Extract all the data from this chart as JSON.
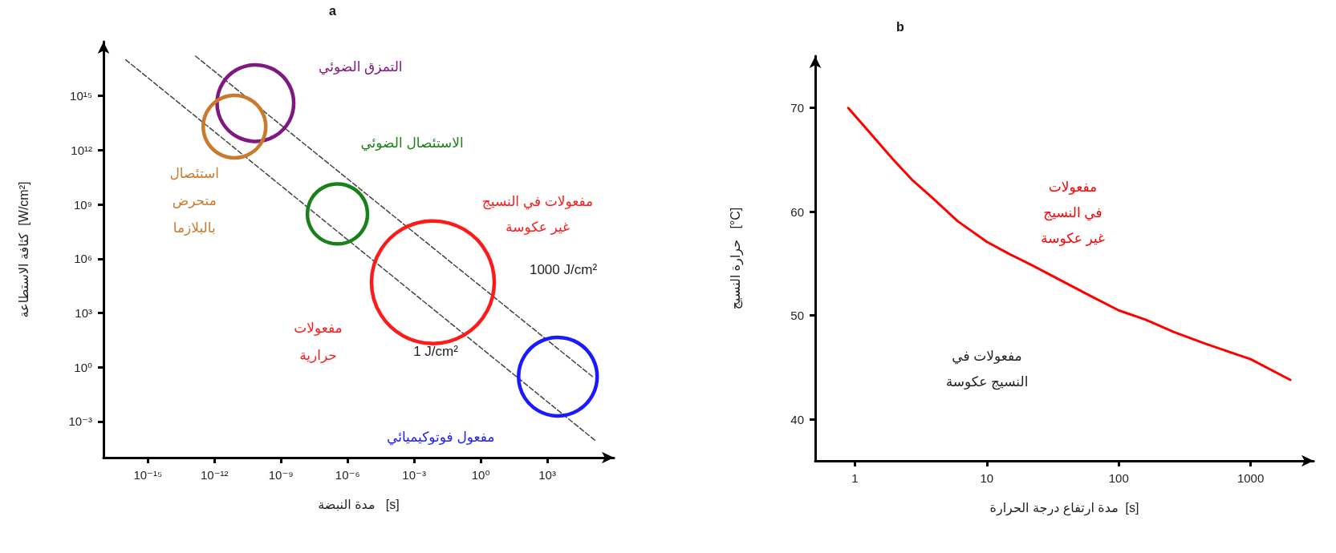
{
  "chart_data": [
    {
      "type": "bubble",
      "title": "a",
      "xlabel": "مدة النبضة   [s]",
      "ylabel": "كثافة الاستطاعة  [W/cm²]",
      "log": "xy",
      "marker": "circle",
      "line_style": "dashed",
      "xlim": [
        1e-17,
        1000000.0
      ],
      "ylim": [
        1e-05,
        1e+18
      ],
      "xticks": [
        {
          "value": 1e-15,
          "label": "10⁻¹⁵"
        },
        {
          "value": 1e-12,
          "label": "10⁻¹²"
        },
        {
          "value": 1e-09,
          "label": "10⁻⁹"
        },
        {
          "value": 1e-06,
          "label": "10⁻⁶"
        },
        {
          "value": 0.001,
          "label": "10⁻³"
        },
        {
          "value": 1,
          "label": "10⁰"
        },
        {
          "value": 1000,
          "label": "10³"
        }
      ],
      "yticks": [
        {
          "value": 0.001,
          "label": "10⁻³"
        },
        {
          "value": 1,
          "label": "10⁰"
        },
        {
          "value": 1000,
          "label": "10³"
        },
        {
          "value": 1000000.0,
          "label": "10⁶"
        },
        {
          "value": 1000000000.0,
          "label": "10⁹"
        },
        {
          "value": 1000000000000.0,
          "label": "10¹²"
        },
        {
          "value": 1000000000000000.0,
          "label": "10¹⁵"
        }
      ],
      "series": [
        {
          "name": "التمزق الضوئي",
          "color": "#80197f",
          "x": [
            7e-11
          ],
          "values": [
            400000000000000.0
          ],
          "sizes": [
            0.39
          ]
        },
        {
          "name": "استئصال\nمتحرض\nبالبلازما",
          "color": "#c97a2c",
          "x": [
            8e-12
          ],
          "values": [
            20000000000000.0
          ],
          "sizes": [
            0.26
          ]
        },
        {
          "name": "الاستئصال الضوئي",
          "color": "#1a801a",
          "x": [
            3.5e-07
          ],
          "values": [
            300000000.0
          ],
          "sizes": [
            0.24
          ]
        },
        {
          "name": "مفعولات\nحرارية",
          "color": "#ff1a1a",
          "x": [
            0.007
          ],
          "values": [
            50000.0
          ],
          "sizes": [
            1
          ]
        },
        {
          "name": "مفعول فوتوكيميائي",
          "color": "#1a1aff",
          "x": [
            3000
          ],
          "values": [
            0.3
          ],
          "sizes": [
            0.41
          ]
        },
        {
          "type": "line",
          "marker": "none",
          "color": "#444444",
          "x": [
            1e-16,
            160000.0
          ],
          "values": [
            1e+17,
            8e-05
          ]
        },
        {
          "type": "line",
          "marker": "none",
          "color": "#444444",
          "x": [
            1.4e-13,
            110000.0
          ],
          "values": [
            1.6e+17,
            0.3
          ]
        }
      ],
      "annotations": [
        "1000 J/cm²",
        "1 J/cm²",
        "مفعولات في النسيج\nغير عكوسة"
      ]
    },
    {
      "type": "line",
      "title": "b",
      "xlabel": "مدة ارتفاع درجة الحرارة  [s]",
      "ylabel": "حرارة النسيج   [°C]",
      "log": "x",
      "marker": "none",
      "line_style": "solid",
      "xlim": [
        0.5,
        3000
      ],
      "ylim": [
        36,
        75
      ],
      "xticks": [
        1,
        10,
        100,
        1000
      ],
      "yticks": [
        40,
        50,
        60,
        70
      ],
      "color": "#ff0000",
      "x": [
        0.89,
        1.3,
        1.93,
        2.7,
        3.9,
        6,
        10,
        15,
        22.4,
        35,
        63,
        100,
        160,
        263,
        450,
        1000,
        2000
      ],
      "values": [
        70,
        67.6,
        65.1,
        63.1,
        61.3,
        59.1,
        57.1,
        55.9,
        54.8,
        53.5,
        51.8,
        50.5,
        49.6,
        48.4,
        47.3,
        45.8,
        43.8
      ],
      "annotations": [
        "مفعولات\nفي النسيج\nغير عكوسة",
        "مفعولات في\nالنسيج عكوسة"
      ]
    }
  ]
}
